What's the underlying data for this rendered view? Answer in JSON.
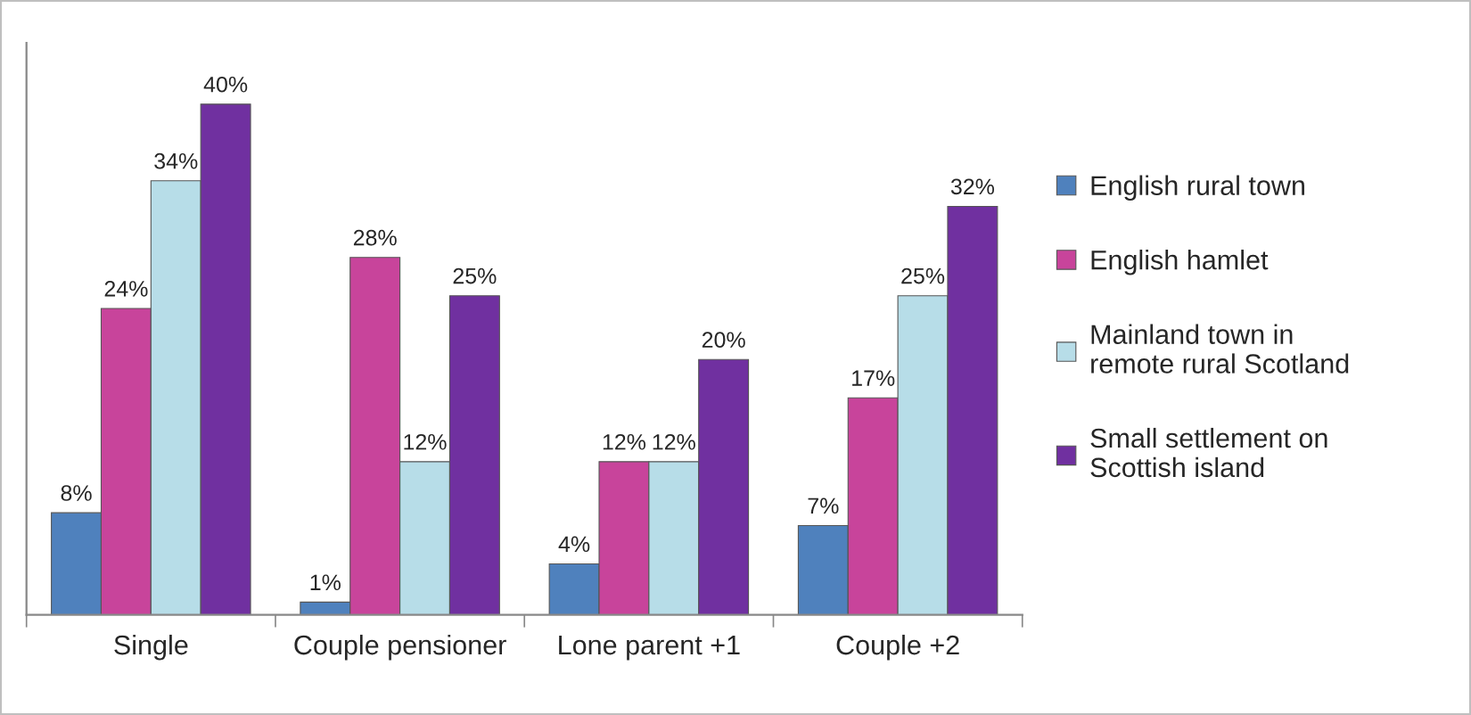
{
  "chart_data": {
    "type": "bar",
    "categories": [
      "Single",
      "Couple pensioner",
      "Lone parent +1",
      "Couple +2"
    ],
    "series": [
      {
        "name": "English rural town",
        "color": "#4f81bd",
        "values": [
          8,
          1,
          4,
          7
        ],
        "value_labels": [
          "8%",
          "1%",
          "4%",
          "7%"
        ]
      },
      {
        "name": "English hamlet",
        "color": "#c8449b",
        "values": [
          24,
          28,
          12,
          17
        ],
        "value_labels": [
          "24%",
          "28%",
          "12%",
          "17%"
        ]
      },
      {
        "name": "Mainland town in\nremote rural Scotland",
        "color": "#b7dde8",
        "values": [
          34,
          12,
          12,
          25
        ],
        "value_labels": [
          "34%",
          "12%",
          "12%",
          "25%"
        ]
      },
      {
        "name": "Small settlement on\nScottish island",
        "color": "#7030a0",
        "values": [
          40,
          25,
          20,
          32
        ],
        "value_labels": [
          "40%",
          "25%",
          "20%",
          "32%"
        ]
      }
    ],
    "legend": "right",
    "grid": false,
    "tick_labels": "x"
  }
}
